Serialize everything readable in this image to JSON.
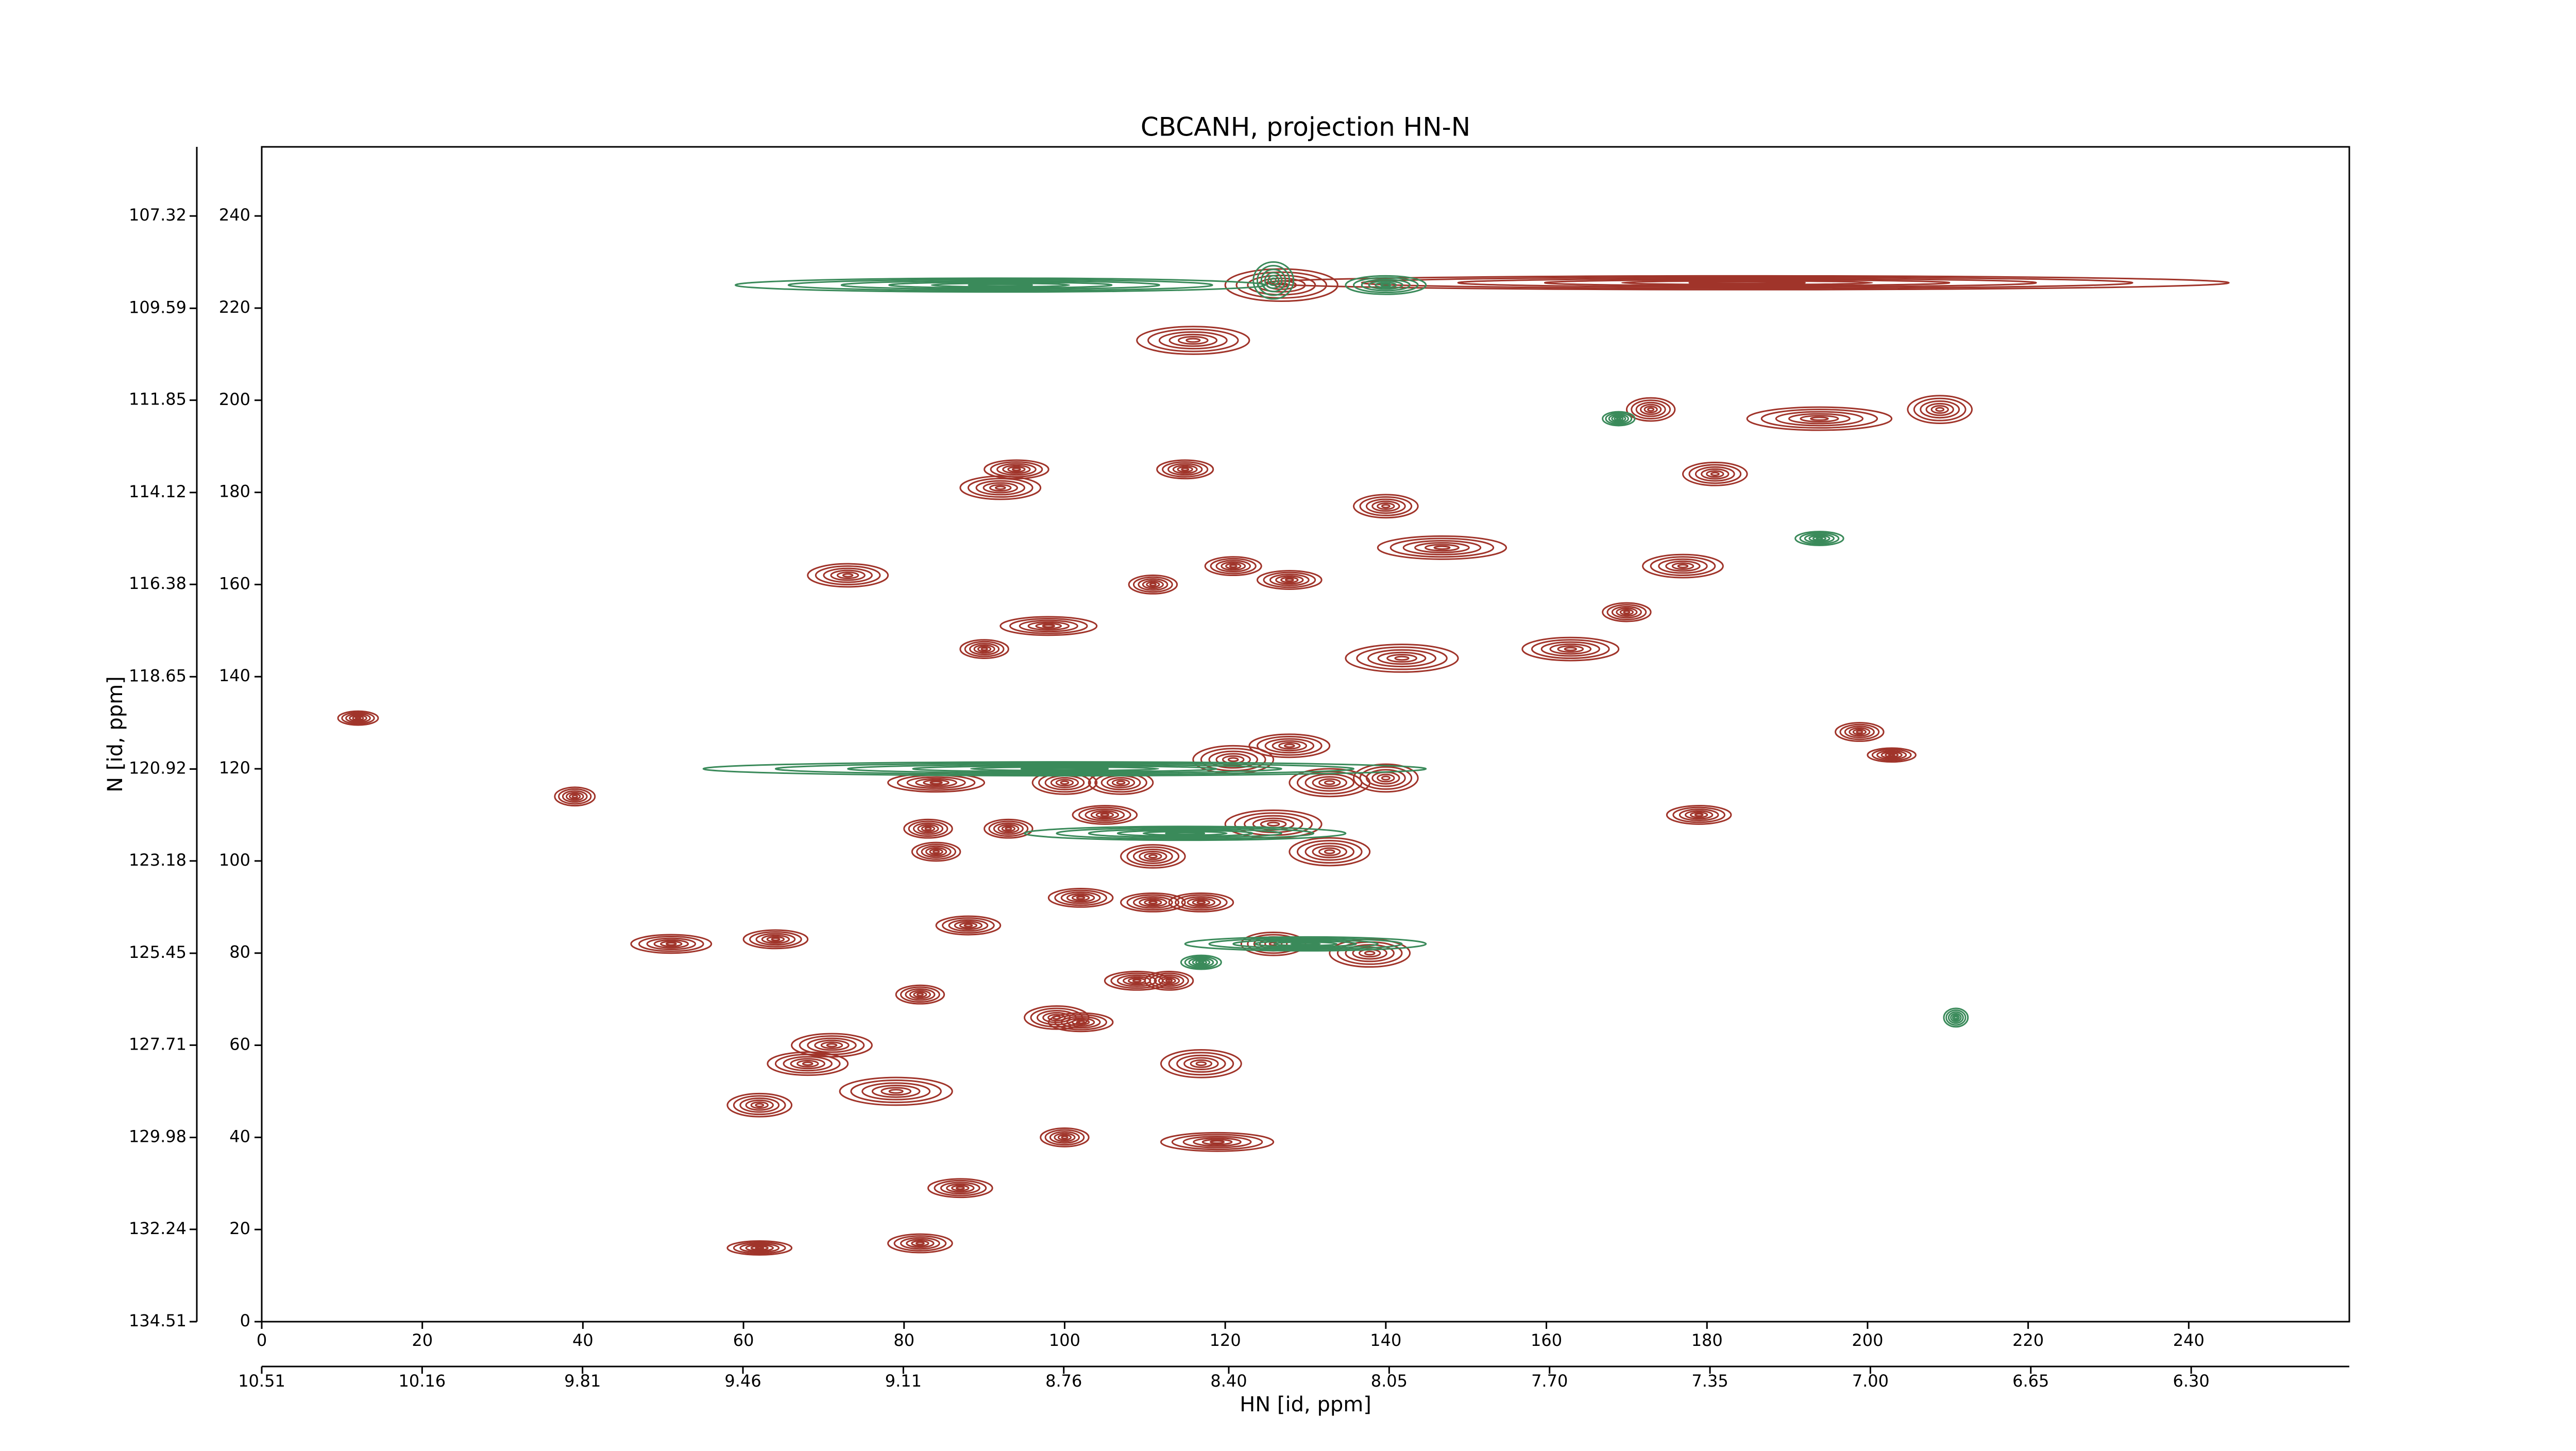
{
  "chart_data": {
    "type": "contour",
    "title": "CBCANH, projection HN-N",
    "xlabel": "HN [id, ppm]",
    "ylabel": "N [id, ppm]",
    "xlim": [
      0,
      260
    ],
    "xticks": [
      0,
      20,
      40,
      60,
      80,
      100,
      120,
      140,
      160,
      180,
      200,
      220,
      240
    ],
    "ylim": [
      0,
      255
    ],
    "yticks": [
      0,
      20,
      40,
      60,
      80,
      100,
      120,
      140,
      160,
      180,
      200,
      220,
      240
    ],
    "x2lim": [
      10.51,
      5.955
    ],
    "x2ticks": [
      10.51,
      10.16,
      9.81,
      9.46,
      9.11,
      8.76,
      {
        "value": 8.4,
        "label": "8.40"
      },
      8.05,
      {
        "value": 7.7,
        "label": "7.70"
      },
      7.35,
      {
        "value": 7.0,
        "label": "7.00"
      },
      6.65,
      {
        "value": 6.3,
        "label": "6.30"
      }
    ],
    "y2lim": [
      134.51,
      105.62
    ],
    "y2ticks": [
      134.51,
      132.24,
      129.98,
      127.71,
      125.45,
      123.18,
      120.92,
      118.65,
      116.38,
      114.12,
      111.85,
      109.59,
      107.32
    ],
    "series": [
      {
        "color": "#a0342a",
        "x": [
          127,
          185,
          116,
          209,
          194,
          173,
          181,
          92,
          94,
          115,
          140,
          73,
          111,
          121,
          128,
          147,
          177,
          163,
          170,
          98,
          90,
          142,
          12,
          121,
          128,
          133,
          140,
          126,
          133,
          111,
          107,
          100,
          84,
          105,
          199,
          203,
          179,
          39,
          83,
          93,
          84,
          51,
          64,
          138,
          126,
          88,
          117,
          111,
          102,
          82,
          109,
          99,
          113,
          117,
          102,
          71,
          79,
          68,
          62,
          100,
          119,
          87,
          82,
          62
        ],
        "y": [
          225,
          225.5,
          213,
          198,
          196,
          198,
          184,
          181,
          185,
          185,
          177,
          162,
          160,
          164,
          161,
          168,
          164,
          146,
          154,
          151,
          146,
          144,
          131,
          122,
          125,
          117,
          118,
          108,
          102,
          101,
          117,
          117,
          117,
          110,
          128,
          123,
          110,
          114,
          107,
          107,
          102,
          82,
          83,
          80,
          82,
          86,
          91,
          91,
          92,
          71,
          74,
          66,
          74,
          56,
          65,
          60,
          50,
          56,
          47,
          40,
          39,
          29,
          17,
          16
        ],
        "widths": [
          14,
          120,
          14,
          8,
          18,
          6,
          8,
          10,
          8,
          7,
          8,
          10,
          6,
          7,
          8,
          16,
          10,
          12,
          6,
          12,
          6,
          14,
          5,
          10,
          10,
          10,
          8,
          12,
          10,
          8,
          8,
          8,
          12,
          8,
          6,
          6,
          8,
          5,
          6,
          6,
          6,
          10,
          8,
          10,
          8,
          8,
          8,
          8,
          8,
          6,
          8,
          8,
          6,
          10,
          8,
          10,
          14,
          10,
          8,
          6,
          14,
          8,
          8,
          8
        ],
        "heights": [
          7,
          3,
          6,
          6,
          5,
          5,
          5,
          5,
          4,
          4,
          5,
          5,
          4,
          4,
          4,
          5,
          5,
          5,
          4,
          4,
          4,
          6,
          3,
          6,
          5,
          6,
          6,
          6,
          6,
          5,
          5,
          5,
          4,
          4,
          4,
          3,
          4,
          4,
          4,
          4,
          4,
          4,
          4,
          6,
          5,
          4,
          4,
          4,
          4,
          4,
          4,
          5,
          4,
          6,
          4,
          5,
          6,
          5,
          5,
          4,
          4,
          4,
          4,
          3
        ]
      },
      {
        "color": "#3a8a5a",
        "x": [
          92,
          126,
          100,
          115,
          130,
          169,
          211,
          194,
          117,
          140
        ],
        "y": [
          225,
          226,
          120,
          106,
          82,
          196,
          66,
          170,
          78,
          225
        ],
        "widths": [
          66,
          5,
          90,
          40,
          30,
          4,
          3,
          6,
          5,
          10
        ],
        "heights": [
          3,
          8,
          3,
          3,
          3,
          3,
          4,
          3,
          3,
          4
        ]
      }
    ]
  }
}
